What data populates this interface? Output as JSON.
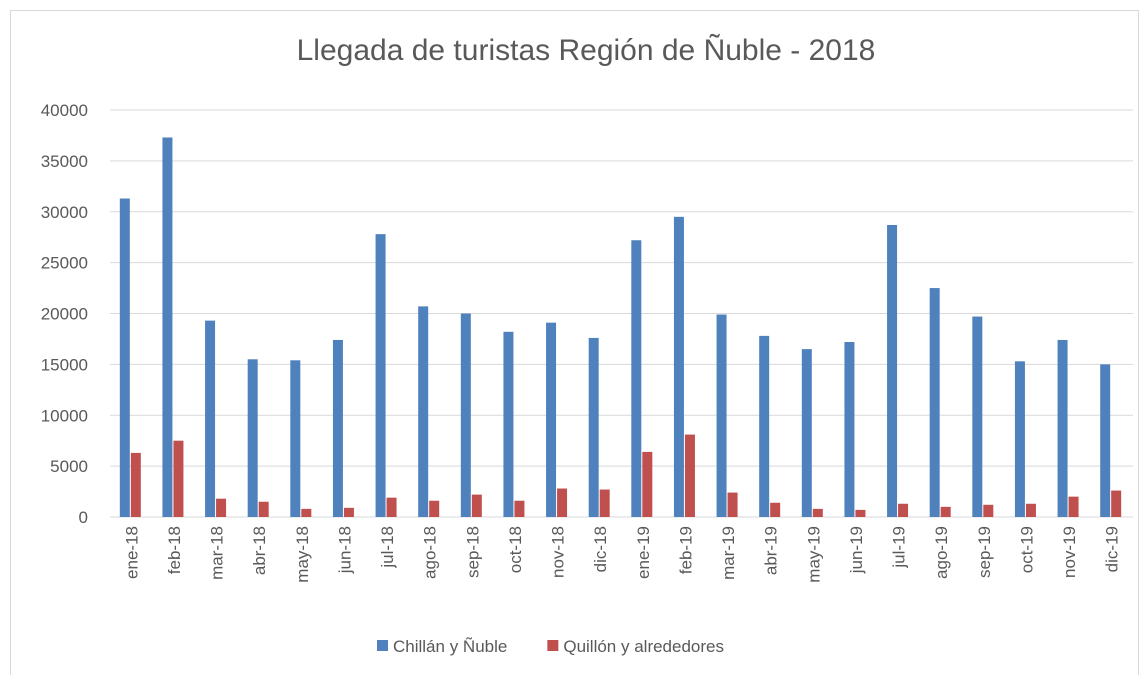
{
  "chart_data": {
    "type": "bar",
    "title": "Llegada de turistas Región de Ñuble - 2018",
    "categories": [
      "ene-18",
      "feb-18",
      "mar-18",
      "abr-18",
      "may-18",
      "jun-18",
      "jul-18",
      "ago-18",
      "sep-18",
      "oct-18",
      "nov-18",
      "dic-18",
      "ene-19",
      "feb-19",
      "mar-19",
      "abr-19",
      "may-19",
      "jun-19",
      "jul-19",
      "ago-19",
      "sep-19",
      "oct-19",
      "nov-19",
      "dic-19"
    ],
    "series": [
      {
        "name": "Chillán y Ñuble",
        "color": "#4f81bd",
        "values": [
          31300,
          37300,
          19300,
          15500,
          15400,
          17400,
          27800,
          20700,
          20000,
          18200,
          19100,
          17600,
          27200,
          29500,
          19900,
          17800,
          16500,
          17200,
          28700,
          22500,
          19700,
          15300,
          17400,
          15000
        ]
      },
      {
        "name": "Quillón y alrededores",
        "color": "#c0504d",
        "values": [
          6300,
          7500,
          1800,
          1500,
          800,
          900,
          1900,
          1600,
          2200,
          1600,
          2800,
          2700,
          6400,
          8100,
          2400,
          1400,
          800,
          700,
          1300,
          1000,
          1200,
          1300,
          2000,
          2600
        ]
      }
    ],
    "ylim": [
      0,
      40000
    ],
    "yticks": [
      0,
      5000,
      10000,
      15000,
      20000,
      25000,
      30000,
      35000,
      40000
    ],
    "grid": true,
    "legend": "bottom"
  }
}
